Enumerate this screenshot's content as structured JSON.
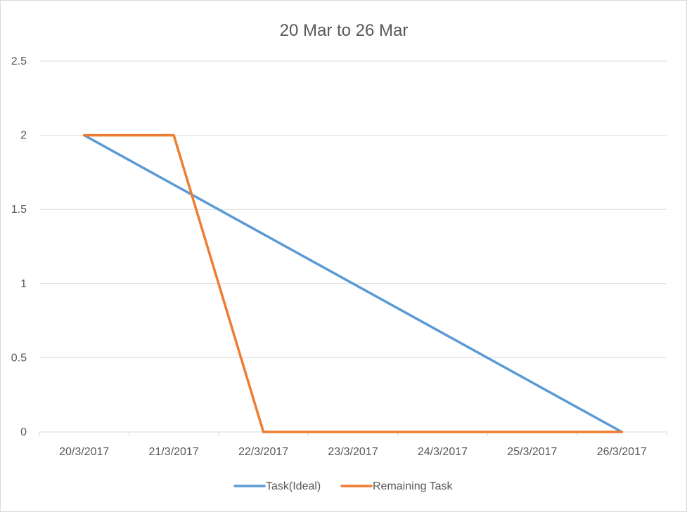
{
  "chart_data": {
    "type": "line",
    "title": "20 Mar to 26 Mar",
    "xlabel": "",
    "ylabel": "",
    "categories": [
      "20/3/2017",
      "21/3/2017",
      "22/3/2017",
      "23/3/2017",
      "24/3/2017",
      "25/3/2017",
      "26/3/2017"
    ],
    "ylim": [
      0,
      2.5
    ],
    "yticks": [
      "0",
      "0.5",
      "1",
      "1.5",
      "2",
      "2.5"
    ],
    "grid": true,
    "legend_position": "bottom",
    "series": [
      {
        "name": "Task(Ideal)",
        "values": [
          2,
          1.6667,
          1.3333,
          1,
          0.6667,
          0.3333,
          0
        ],
        "color": "#5b9bd5"
      },
      {
        "name": "Remaining Task",
        "values": [
          2,
          2,
          0,
          0,
          0,
          0,
          0
        ],
        "color": "#ed7d31"
      }
    ]
  }
}
